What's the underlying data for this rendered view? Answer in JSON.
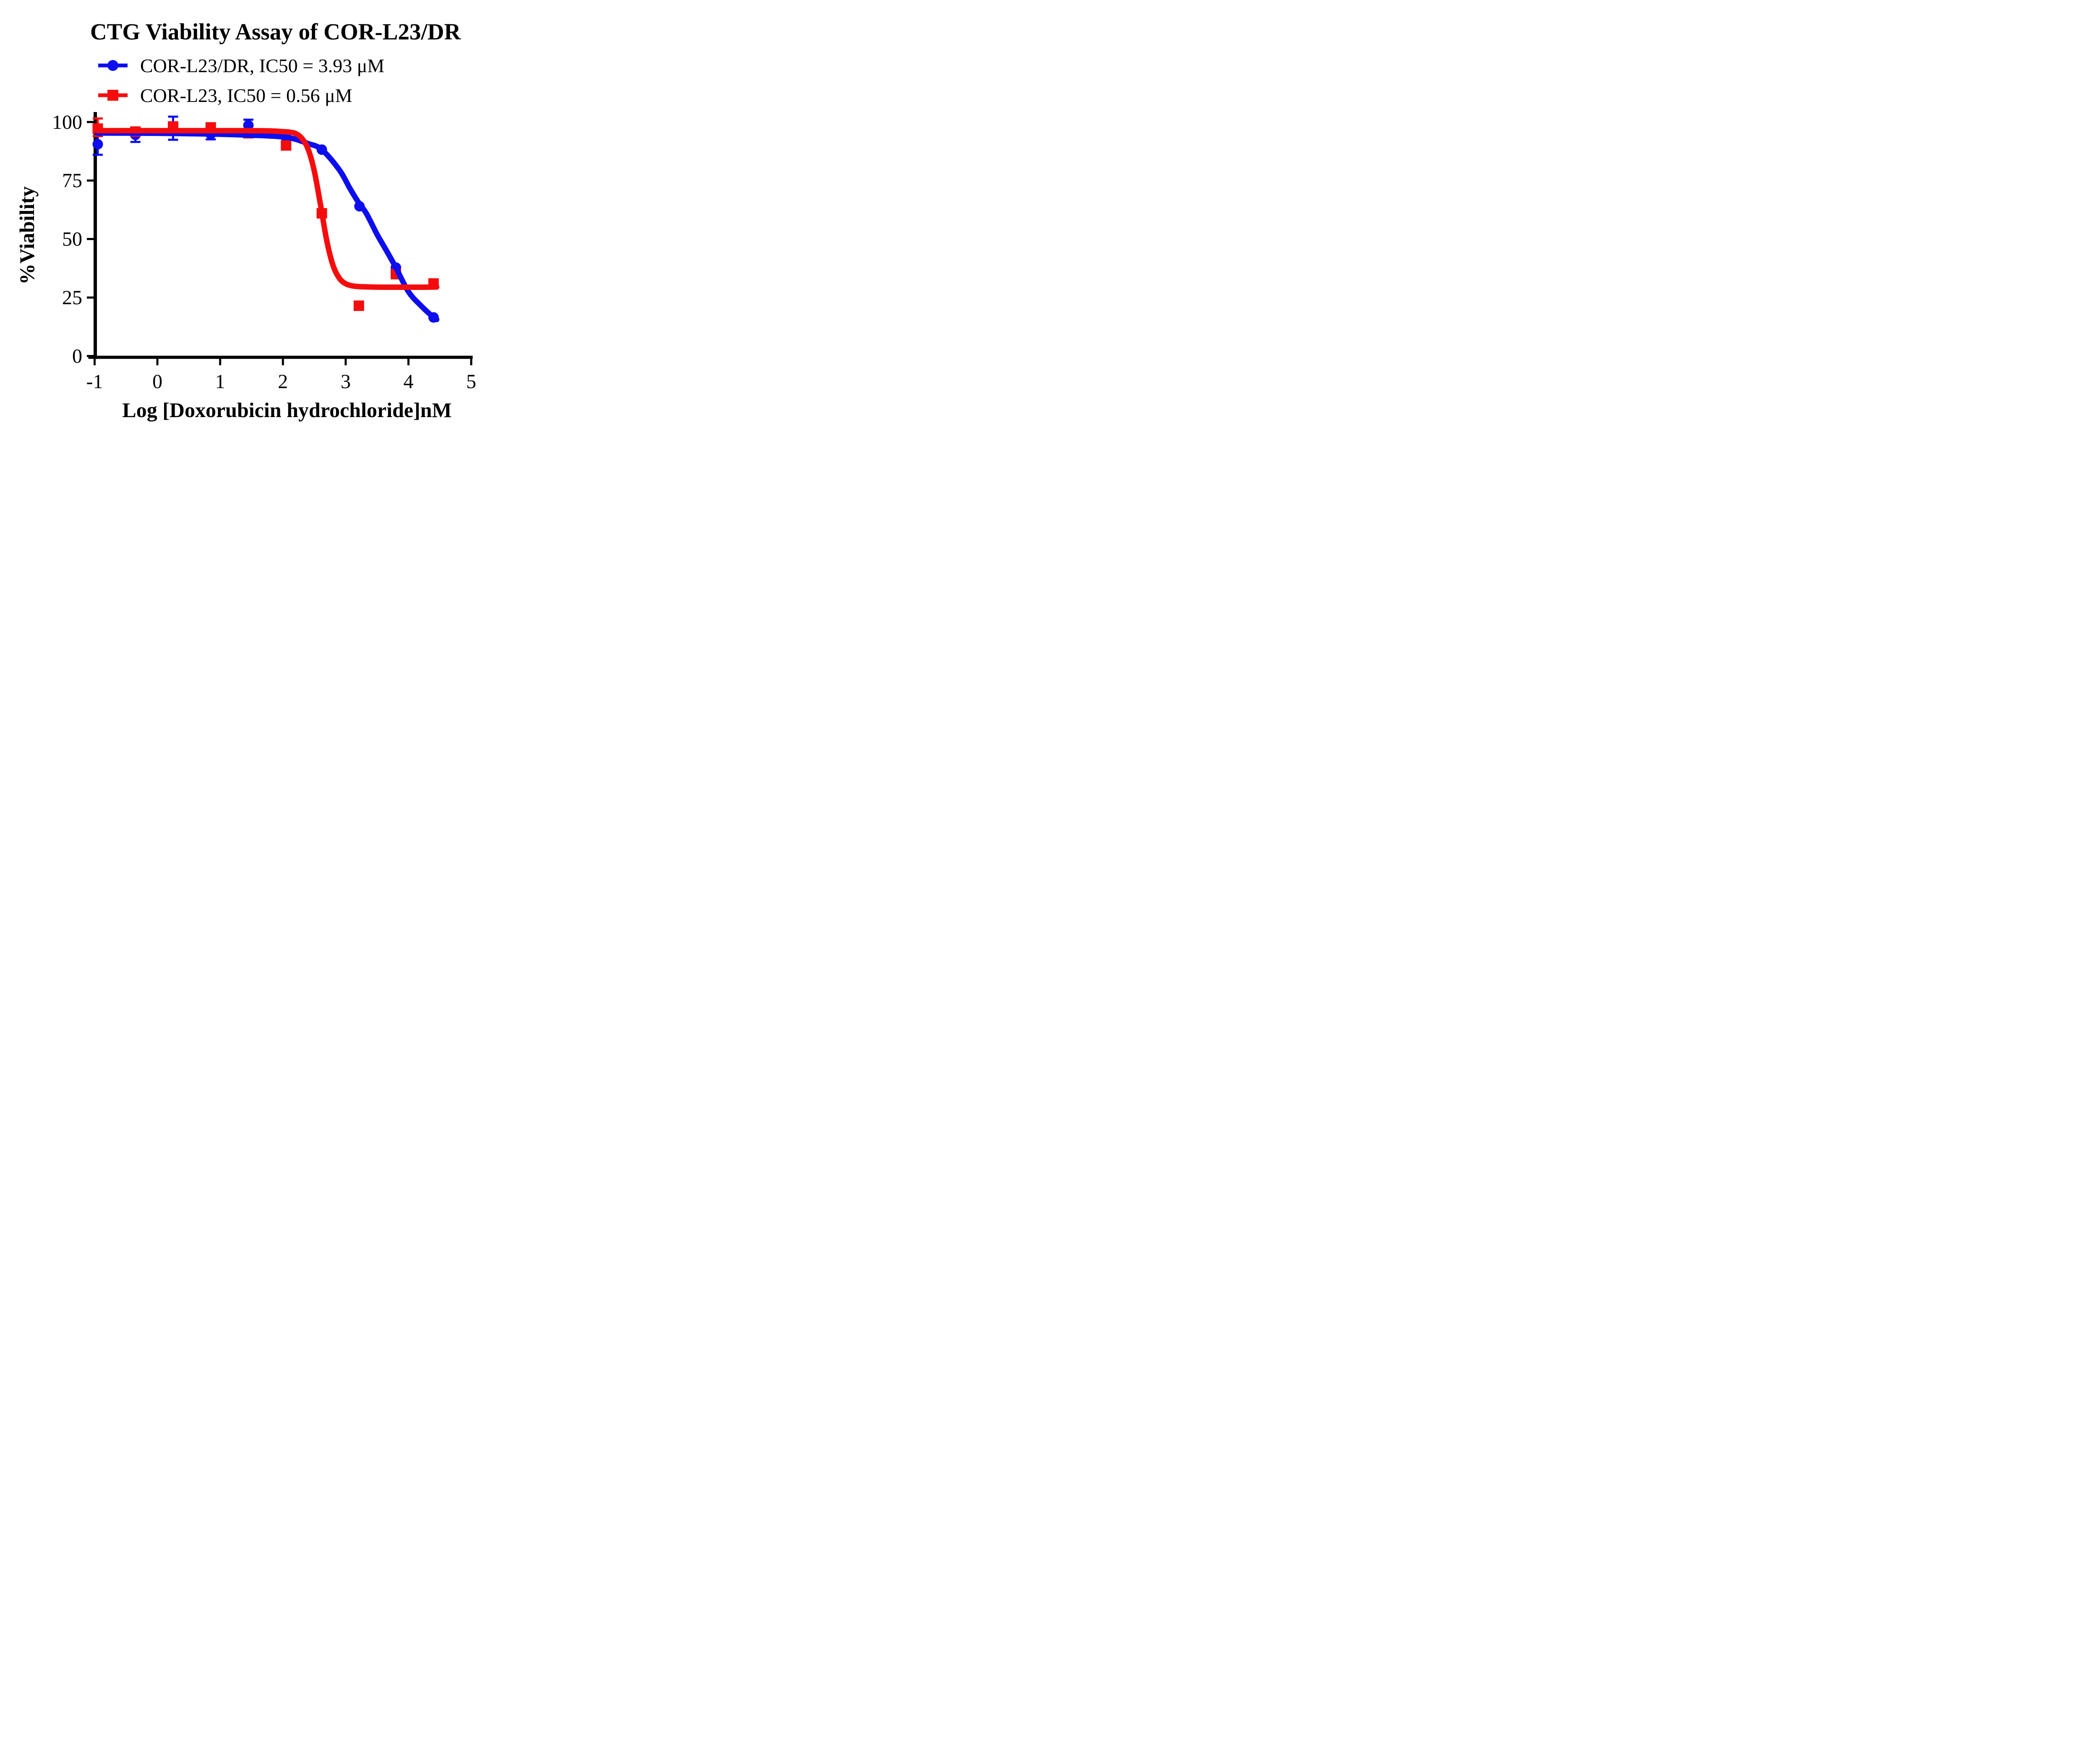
{
  "title": "CTG Viability Assay of COR-L23/DR",
  "legend": [
    {
      "label": "COR-L23/DR, IC50 = 3.93 μM",
      "series": "COR-L23/DR",
      "ic50": "3.93 μM",
      "color": "#0D0DF0",
      "marker": "circle"
    },
    {
      "label": "COR-L23, IC50 = 0.56 μM",
      "series": "COR-L23",
      "ic50": "0.56 μM",
      "color": "#F50D0D",
      "marker": "square"
    }
  ],
  "chart_data": {
    "type": "scatter",
    "title": "CTG Viability Assay of COR-L23/DR",
    "xlabel": "Log [Doxorubicin hydrochloride]nM",
    "ylabel": "%Viability",
    "xlim": [
      -1,
      5
    ],
    "ylim": [
      0,
      100
    ],
    "xticks": [
      "-1",
      "0",
      "1",
      "2",
      "3",
      "4",
      "5"
    ],
    "yticks": [
      "0",
      "25",
      "50",
      "75",
      "100"
    ],
    "grid": false,
    "legend_position": "top-left",
    "axis_color": "#000000",
    "series": [
      {
        "name": "COR-L23/DR",
        "color": "#0D0DF0",
        "marker": "circle",
        "points": [
          {
            "x": -0.95,
            "y": 90.5,
            "err_up": 3.5,
            "err_dn": 4.5
          },
          {
            "x": -0.35,
            "y": 94.5,
            "err_up": 0,
            "err_dn": 3.0
          },
          {
            "x": 0.25,
            "y": 97.3,
            "err_up": 5.0,
            "err_dn": 4.9
          },
          {
            "x": 0.85,
            "y": 94.8,
            "err_up": 0,
            "err_dn": 2.2
          },
          {
            "x": 1.45,
            "y": 98.6,
            "err_up": 2.4,
            "err_dn": 2.0
          },
          {
            "x": 2.05,
            "y": 93.5,
            "err_up": 0,
            "err_dn": 0
          },
          {
            "x": 2.62,
            "y": 88.2,
            "err_up": 0,
            "err_dn": 0
          },
          {
            "x": 3.22,
            "y": 64.0,
            "err_up": 0,
            "err_dn": 0
          },
          {
            "x": 3.8,
            "y": 37.8,
            "err_up": 0,
            "err_dn": 0
          },
          {
            "x": 4.4,
            "y": 16.5,
            "err_up": 0,
            "err_dn": 0
          }
        ],
        "fit_curve": [
          [
            -0.95,
            95.3
          ],
          [
            0,
            95.2
          ],
          [
            0.8,
            94.9
          ],
          [
            1.45,
            94.4
          ],
          [
            2.05,
            93.5
          ],
          [
            2.4,
            90.8
          ],
          [
            2.62,
            88.2
          ],
          [
            2.9,
            79.5
          ],
          [
            3.07,
            71.5
          ],
          [
            3.2,
            65.8
          ],
          [
            3.33,
            60.9
          ],
          [
            3.5,
            52.0
          ],
          [
            3.65,
            45.0
          ],
          [
            3.8,
            37.8
          ],
          [
            4.0,
            27.5
          ],
          [
            4.2,
            21.5
          ],
          [
            4.4,
            16.5
          ],
          [
            4.45,
            15.6
          ]
        ]
      },
      {
        "name": "COR-L23",
        "color": "#F50D0D",
        "marker": "square",
        "points": [
          {
            "x": -0.95,
            "y": 97.2,
            "err_up": 4.3,
            "err_dn": 3.2
          },
          {
            "x": -0.35,
            "y": 95.9,
            "err_up": 1.6,
            "err_dn": 1.2
          },
          {
            "x": 0.25,
            "y": 98.1,
            "err_up": 1.5,
            "err_dn": 1.5
          },
          {
            "x": 0.85,
            "y": 97.6,
            "err_up": 1.9,
            "err_dn": 1.2
          },
          {
            "x": 1.45,
            "y": 95.2,
            "err_up": 1.0,
            "err_dn": 1.5
          },
          {
            "x": 2.05,
            "y": 90.0,
            "err_up": 0,
            "err_dn": 0
          },
          {
            "x": 2.62,
            "y": 61.0,
            "err_up": 0,
            "err_dn": 0
          },
          {
            "x": 3.21,
            "y": 21.5,
            "err_up": 0,
            "err_dn": 0
          },
          {
            "x": 3.8,
            "y": 35.0,
            "err_up": 0,
            "err_dn": 0
          },
          {
            "x": 4.4,
            "y": 31.0,
            "err_up": 0,
            "err_dn": 0
          }
        ],
        "fit_curve": [
          [
            -0.95,
            96.3
          ],
          [
            0,
            96.3
          ],
          [
            0.8,
            96.3
          ],
          [
            1.4,
            96.3
          ],
          [
            1.8,
            96.2
          ],
          [
            2.0,
            95.9
          ],
          [
            2.1,
            95.7
          ],
          [
            2.2,
            95.1
          ],
          [
            2.3,
            93.1
          ],
          [
            2.4,
            88.5
          ],
          [
            2.5,
            79.1
          ],
          [
            2.6,
            64.5
          ],
          [
            2.7,
            49.1
          ],
          [
            2.8,
            38.6
          ],
          [
            2.9,
            33.2
          ],
          [
            3.0,
            30.9
          ],
          [
            3.1,
            30.0
          ],
          [
            3.2,
            29.7
          ],
          [
            3.4,
            29.5
          ],
          [
            3.7,
            29.4
          ],
          [
            4.0,
            29.4
          ],
          [
            4.2,
            29.4
          ],
          [
            4.45,
            29.5
          ]
        ]
      }
    ]
  }
}
